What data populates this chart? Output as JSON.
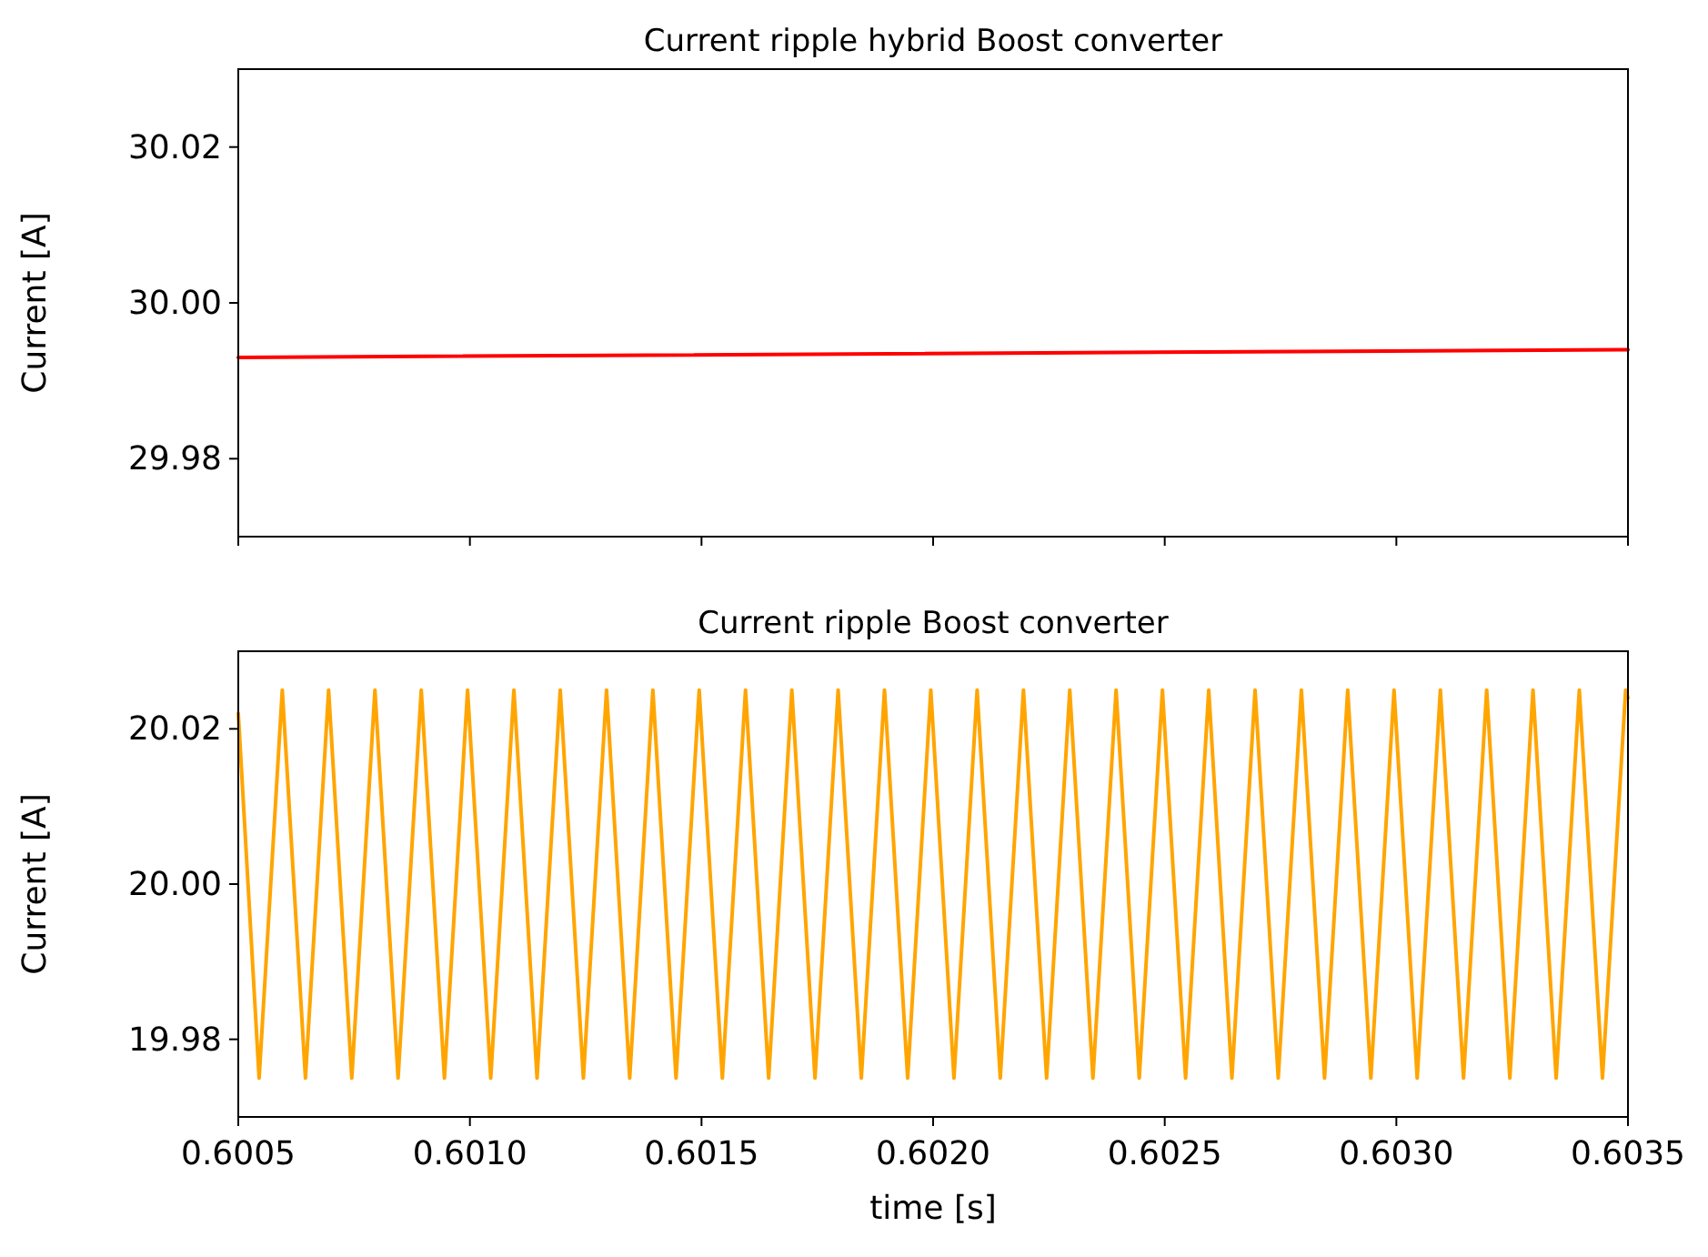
{
  "chart_data": [
    {
      "type": "line",
      "title": "Current ripple hybrid Boost converter",
      "ylabel": "Current [A]",
      "x": [
        0.6005,
        0.6035
      ],
      "values": [
        29.993,
        29.994
      ],
      "color": "#ff0000",
      "xlim": [
        0.6005,
        0.6035
      ],
      "ylim": [
        29.97,
        30.03
      ],
      "xticks": [
        0.6005,
        0.601,
        0.6015,
        0.602,
        0.6025,
        0.603,
        0.6035
      ],
      "yticks": [
        29.98,
        {
          "value": 30,
          "label": "30.00"
        },
        30.02
      ],
      "tick_labels": "y"
    },
    {
      "type": "line",
      "title": "Current ripple Boost converter",
      "xlabel": "time [s]",
      "ylabel": "Current [A]",
      "x": [
        0.6005,
        0.600545,
        0.600595,
        0.600645,
        0.600695,
        0.600745,
        0.600795,
        0.600845,
        0.600895,
        0.600945,
        0.600995,
        0.601045,
        0.601095,
        0.601145,
        0.601195,
        0.601245,
        0.601295,
        0.601345,
        0.601395,
        0.601445,
        0.601495,
        0.601545,
        0.601595,
        0.601645,
        0.601695,
        0.601745,
        0.601795,
        0.601845,
        0.601895,
        0.601945,
        0.601995,
        0.602045,
        0.602095,
        0.602145,
        0.602195,
        0.602245,
        0.602295,
        0.602345,
        0.602395,
        0.602445,
        0.602495,
        0.602545,
        0.602595,
        0.602645,
        0.602695,
        0.602745,
        0.602795,
        0.602845,
        0.602895,
        0.602945,
        0.602995,
        0.603045,
        0.603095,
        0.603145,
        0.603195,
        0.603245,
        0.603295,
        0.603345,
        0.603395,
        0.603445,
        0.603495,
        0.6035
      ],
      "values": [
        20.022,
        19.975,
        20.025,
        19.975,
        20.025,
        19.975,
        20.025,
        19.975,
        20.025,
        19.975,
        20.025,
        19.975,
        20.025,
        19.975,
        20.025,
        19.975,
        20.025,
        19.975,
        20.025,
        19.975,
        20.025,
        19.975,
        20.025,
        19.975,
        20.025,
        19.975,
        20.025,
        19.975,
        20.025,
        19.975,
        20.025,
        19.975,
        20.025,
        19.975,
        20.025,
        19.975,
        20.025,
        19.975,
        20.025,
        19.975,
        20.025,
        19.975,
        20.025,
        19.975,
        20.025,
        19.975,
        20.025,
        19.975,
        20.025,
        19.975,
        20.025,
        19.975,
        20.025,
        19.975,
        20.025,
        19.975,
        20.025,
        19.975,
        20.025,
        19.975,
        20.025,
        20.024
      ],
      "color": "#ffa500",
      "xlim": [
        0.6005,
        0.6035
      ],
      "ylim": [
        19.97,
        20.03
      ],
      "xticks": [
        0.6005,
        {
          "value": 0.601,
          "label": "0.6010"
        },
        0.6015,
        {
          "value": 0.602,
          "label": "0.6020"
        },
        0.6025,
        {
          "value": 0.603,
          "label": "0.6030"
        },
        0.6035
      ],
      "yticks": [
        19.98,
        {
          "value": 20,
          "label": "20.00"
        },
        20.02
      ]
    }
  ]
}
